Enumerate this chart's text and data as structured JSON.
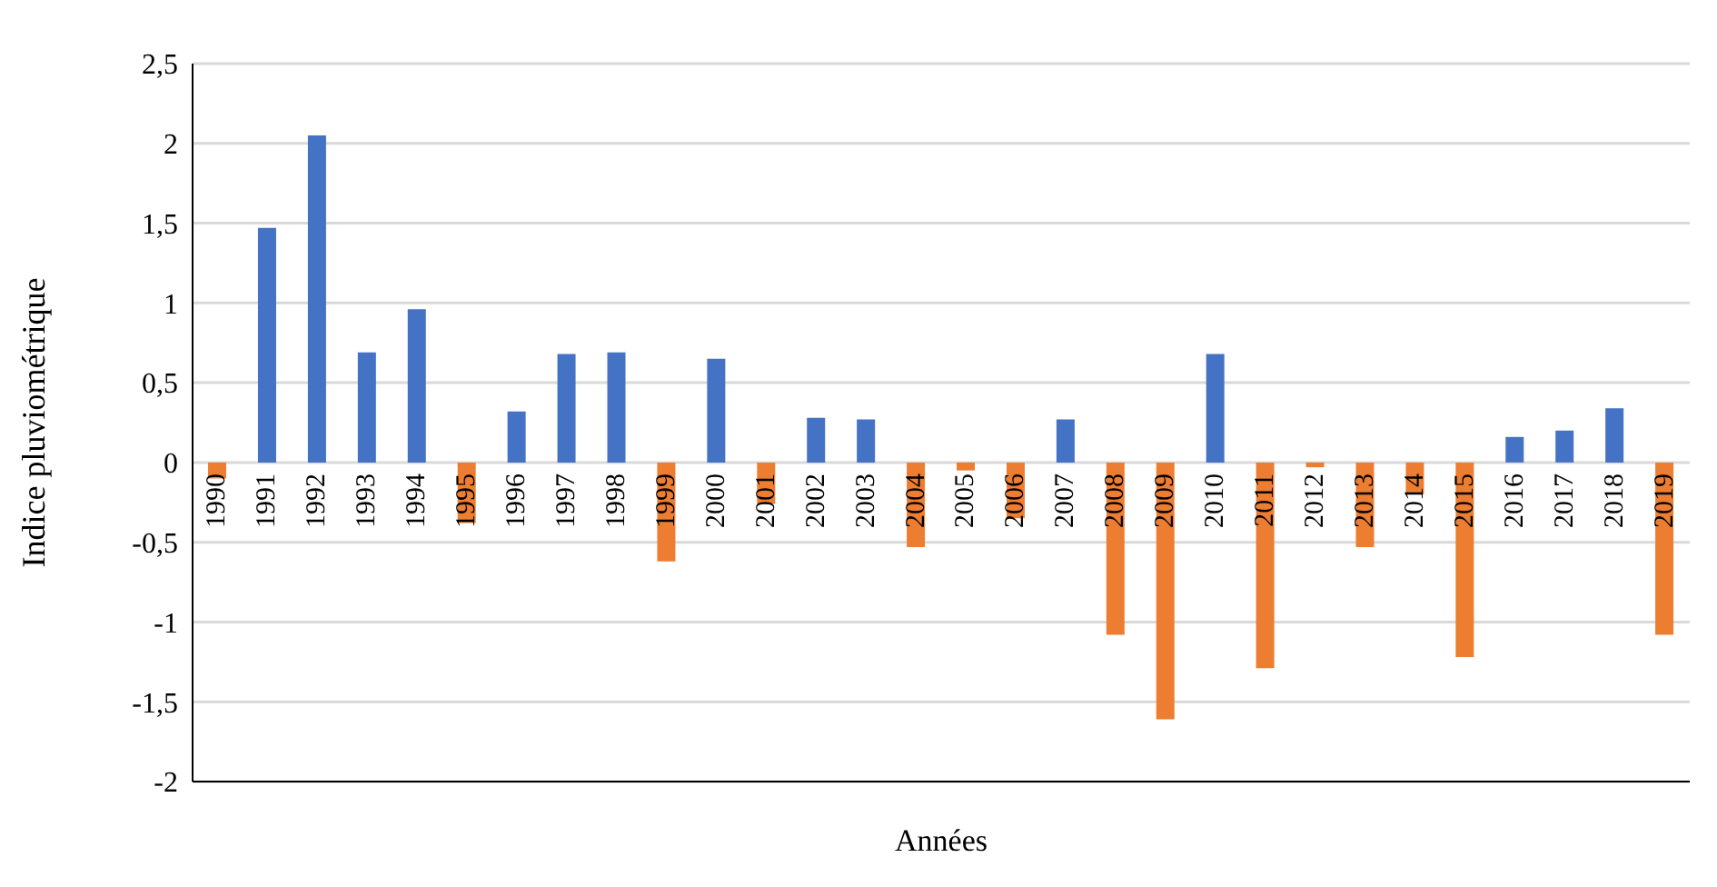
{
  "chart_data": {
    "type": "bar",
    "xlabel": "Années",
    "ylabel": "Indice pluviométrique",
    "categories": [
      "1990",
      "1991",
      "1992",
      "1993",
      "1994",
      "1995",
      "1996",
      "1997",
      "1998",
      "1999",
      "2000",
      "2001",
      "2002",
      "2003",
      "2004",
      "2005",
      "2006",
      "2007",
      "2008",
      "2009",
      "2010",
      "2011",
      "2012",
      "2013",
      "2014",
      "2015",
      "2016",
      "2017",
      "2018",
      "2019"
    ],
    "values": [
      -0.1,
      1.47,
      2.05,
      0.69,
      0.96,
      -0.38,
      0.32,
      0.68,
      0.69,
      -0.62,
      0.65,
      -0.26,
      0.28,
      0.27,
      -0.53,
      -0.05,
      -0.35,
      0.27,
      -1.08,
      -1.61,
      0.68,
      -1.29,
      -0.03,
      -0.53,
      -0.2,
      -1.22,
      0.16,
      0.2,
      0.34,
      -1.08
    ],
    "colors": [
      "#ed7d31",
      "#4472c4",
      "#4472c4",
      "#4472c4",
      "#4472c4",
      "#ed7d31",
      "#4472c4",
      "#4472c4",
      "#4472c4",
      "#ed7d31",
      "#4472c4",
      "#ed7d31",
      "#4472c4",
      "#4472c4",
      "#ed7d31",
      "#ed7d31",
      "#ed7d31",
      "#4472c4",
      "#ed7d31",
      "#ed7d31",
      "#4472c4",
      "#ed7d31",
      "#ed7d31",
      "#ed7d31",
      "#ed7d31",
      "#ed7d31",
      "#4472c4",
      "#4472c4",
      "#4472c4",
      "#ed7d31"
    ],
    "ylim": [
      -2,
      2.5
    ],
    "yticks": [
      -2,
      {
        "value": -1.5,
        "label": "-1,5"
      },
      -1,
      {
        "value": -0.5,
        "label": "-0,5"
      },
      0,
      {
        "value": 0.5,
        "label": "0,5"
      },
      1,
      {
        "value": 1.5,
        "label": "1,5"
      },
      2,
      {
        "value": 2.5,
        "label": "2,5"
      }
    ],
    "grid": "y",
    "legend": false
  }
}
